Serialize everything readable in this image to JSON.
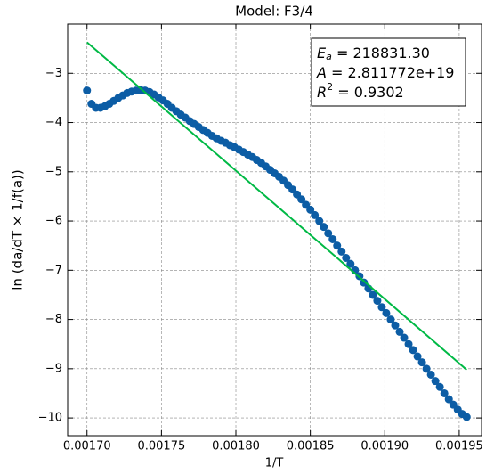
{
  "chart_data": {
    "type": "scatter",
    "title": "Model: F3/4",
    "xlabel": "1/T",
    "ylabel": "ln (da/dT × 1/f(a))",
    "xlim": [
      0.001687,
      0.001965
    ],
    "ylim": [
      -10.36,
      -2.0
    ],
    "xticks": [
      {
        "value": 0.0017,
        "label": "0.00170"
      },
      0.00175,
      {
        "value": 0.0018,
        "label": "0.00180"
      },
      0.00185,
      {
        "value": 0.0019,
        "label": "0.00190"
      },
      0.00195
    ],
    "yticks": [
      {
        "value": -10,
        "label": "−10"
      },
      {
        "value": -9,
        "label": "−9"
      },
      {
        "value": -8,
        "label": "−8"
      },
      {
        "value": -7,
        "label": "−7"
      },
      {
        "value": -6,
        "label": "−6"
      },
      {
        "value": -5,
        "label": "−5"
      },
      {
        "value": -4,
        "label": "−4"
      },
      {
        "value": -3,
        "label": "−3"
      }
    ],
    "grid": true,
    "series": [
      {
        "color": "#0c5da5",
        "x": [
          0.0017,
          0.001703,
          0.001706,
          0.001709,
          0.001712,
          0.001715,
          0.001718,
          0.001721,
          0.001724,
          0.001727,
          0.00173,
          0.001733,
          0.001736,
          0.001739,
          0.001742,
          0.001745,
          0.001748,
          0.001751,
          0.001754,
          0.001757,
          0.00176,
          0.001763,
          0.001766,
          0.001769,
          0.001772,
          0.001775,
          0.001778,
          0.001781,
          0.001784,
          0.001787,
          0.00179,
          0.001793,
          0.001796,
          0.001799,
          0.001802,
          0.001805,
          0.001808,
          0.001811,
          0.001814,
          0.001817,
          0.00182,
          0.001823,
          0.001826,
          0.001829,
          0.001832,
          0.001835,
          0.001838,
          0.001841,
          0.001844,
          0.001847,
          0.00185,
          0.001853,
          0.001856,
          0.001859,
          0.001862,
          0.001865,
          0.001868,
          0.001871,
          0.001874,
          0.001877,
          0.00188,
          0.001883,
          0.001886,
          0.001889,
          0.001892,
          0.001895,
          0.001898,
          0.001901,
          0.001904,
          0.001907,
          0.00191,
          0.001913,
          0.001916,
          0.001919,
          0.001922,
          0.001925,
          0.001928,
          0.001931,
          0.001934,
          0.001937,
          0.00194,
          0.001943,
          0.001946,
          0.001949,
          0.001952,
          0.001955
        ],
        "values": [
          -3.35,
          -3.62,
          -3.7,
          -3.7,
          -3.67,
          -3.62,
          -3.56,
          -3.5,
          -3.45,
          -3.4,
          -3.37,
          -3.35,
          -3.34,
          -3.35,
          -3.38,
          -3.43,
          -3.49,
          -3.55,
          -3.62,
          -3.7,
          -3.77,
          -3.84,
          -3.9,
          -3.97,
          -4.03,
          -4.09,
          -4.15,
          -4.21,
          -4.27,
          -4.32,
          -4.37,
          -4.41,
          -4.46,
          -4.5,
          -4.55,
          -4.6,
          -4.65,
          -4.7,
          -4.76,
          -4.82,
          -4.89,
          -4.96,
          -5.03,
          -5.1,
          -5.18,
          -5.27,
          -5.36,
          -5.46,
          -5.56,
          -5.67,
          -5.77,
          -5.88,
          -6.0,
          -6.12,
          -6.25,
          -6.37,
          -6.5,
          -6.62,
          -6.75,
          -6.87,
          -7.0,
          -7.12,
          -7.25,
          -7.37,
          -7.5,
          -7.62,
          -7.75,
          -7.87,
          -8.0,
          -8.12,
          -8.25,
          -8.37,
          -8.5,
          -8.62,
          -8.75,
          -8.87,
          -9.0,
          -9.12,
          -9.25,
          -9.37,
          -9.5,
          -9.62,
          -9.73,
          -9.83,
          -9.92,
          -9.98
        ]
      },
      {
        "color": "#00b945",
        "line": true,
        "x": [
          0.0017,
          0.001955
        ],
        "values": [
          -2.37,
          -9.02
        ]
      }
    ],
    "annotation": [
      {
        "symbol": "E",
        "sub": "a",
        "rest": " = 218831.30"
      },
      {
        "symbol": "A",
        "rest": " = 2.811772e+19"
      },
      {
        "symbol": "R",
        "sup": "2",
        "rest": " = 0.9302"
      }
    ]
  }
}
